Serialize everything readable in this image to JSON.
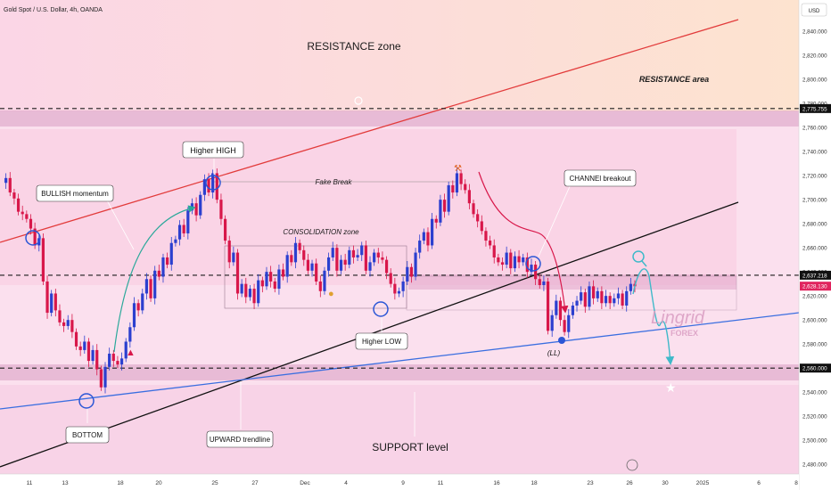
{
  "header": {
    "symbol_title": "Gold Spot / U.S. Dollar, 4h, OANDA",
    "currency_badge": "USD"
  },
  "chart_data": {
    "type": "line",
    "series": [
      {
        "values": [
          2714,
          2718,
          2706,
          2701,
          2690,
          2688,
          2684,
          2676,
          2662,
          2668,
          2632,
          2606,
          2622,
          2608,
          2598,
          2595,
          2600,
          2590,
          2578,
          2575,
          2582,
          2566,
          2575,
          2559,
          2544,
          2561,
          2572,
          2566,
          2563,
          2568,
          2582,
          2594,
          2614,
          2608,
          2622,
          2634,
          2618,
          2641,
          2636,
          2652,
          2646,
          2664,
          2667,
          2679,
          2672,
          2691,
          2697,
          2687,
          2704,
          2717,
          2706,
          2722,
          2700,
          2684,
          2666,
          2648,
          2656,
          2622,
          2630,
          2619,
          2626,
          2614,
          2633,
          2628,
          2640,
          2632,
          2626,
          2642,
          2636,
          2654,
          2648,
          2664,
          2658,
          2650,
          2641,
          2647,
          2632,
          2624,
          2641,
          2652,
          2660,
          2641,
          2650,
          2646,
          2658,
          2652,
          2654,
          2662,
          2641,
          2648,
          2656,
          2652,
          2650,
          2639,
          2630,
          2622,
          2624,
          2632,
          2644,
          2636,
          2656,
          2666,
          2673,
          2662,
          2684,
          2681,
          2700,
          2690,
          2712,
          2706,
          2722,
          2713,
          2708,
          2697,
          2688,
          2682,
          2674,
          2666,
          2662,
          2652,
          2648,
          2646,
          2656,
          2643,
          2653,
          2648,
          2652,
          2640,
          2646,
          2634,
          2629,
          2632,
          2591,
          2604,
          2616,
          2600,
          2590,
          2604,
          2612,
          2616,
          2623,
          2611,
          2628,
          2618,
          2624,
          2614,
          2620,
          2614,
          2618,
          2622,
          2612,
          2624,
          2630,
          2628
        ],
        "x_start": "Nov 10",
        "x_end": "Dec 26"
      }
    ],
    "y_axis": {
      "label": "USD",
      "ticks": [
        2480,
        2500,
        2520,
        2540,
        2560,
        2580,
        2600,
        2620,
        2640,
        2660,
        2680,
        2700,
        2720,
        2740,
        2760,
        2780,
        2800,
        2820,
        2840
      ],
      "tick_labels": [
        "2,480.000",
        "2,500.000",
        "2,520.000",
        "2,540.000",
        "2,560.000",
        "2,580.000",
        "2,600.000",
        "2,620.000",
        "2,640.000",
        "2,660.000",
        "2,680.000",
        "2,700.000",
        "2,720.000",
        "2,740.000",
        "2,760.000",
        "2,780.000",
        "2,800.000",
        "2,820.000",
        "2,840.000"
      ],
      "ylim": [
        2472,
        2866
      ]
    },
    "x_axis": {
      "tick_labels": [
        "11",
        "13",
        "18",
        "20",
        "25",
        "27",
        "Dec",
        "4",
        "9",
        "11",
        "16",
        "18",
        "23",
        "26",
        "30",
        "2025",
        "6",
        "8"
      ]
    },
    "price_levels": [
      {
        "value": 2775.755,
        "label": "2,775.755",
        "style": "dashed",
        "color": "#1c1c1c"
      },
      {
        "value": 2637.218,
        "label": "2,637.218",
        "style": "dashed",
        "color": "#1c1c1c"
      },
      {
        "value": 2628.13,
        "label": "2,628.130",
        "style": "badge",
        "color": "#e0245e"
      },
      {
        "value": 2560.0,
        "label": "2,560.000",
        "style": "dashed",
        "color": "#1c1c1c"
      }
    ],
    "annotations": {
      "resistance_zone": "RESISTANCE zone",
      "resistance_area": "RESISTANCE area",
      "higher_high": "Higher HIGH",
      "bullish_momentum": "BULLISH momentum",
      "fake_break": "Fake Break",
      "consolidation_zone": "CONSOLIDATION zone",
      "channel_breakout": "CHANNEl breakout",
      "higher_low": "Higher LOW",
      "lower_low": "(LL)",
      "bottom": "BOTTOM",
      "upward_trendline": "UPWARD trendline",
      "support_level": "SUPPORT level"
    },
    "watermark": {
      "brand": "Lingrid",
      "sub": "FOREX"
    },
    "colors": {
      "up_candle": "#2b3fcf",
      "down_candle": "#d8174a",
      "resistance_line": "#e23b3b",
      "channel_line": "#111111",
      "support_line": "#3a6ee0",
      "projection": "#3fb9c9",
      "momentum_arrow": "#2aa89a"
    }
  }
}
